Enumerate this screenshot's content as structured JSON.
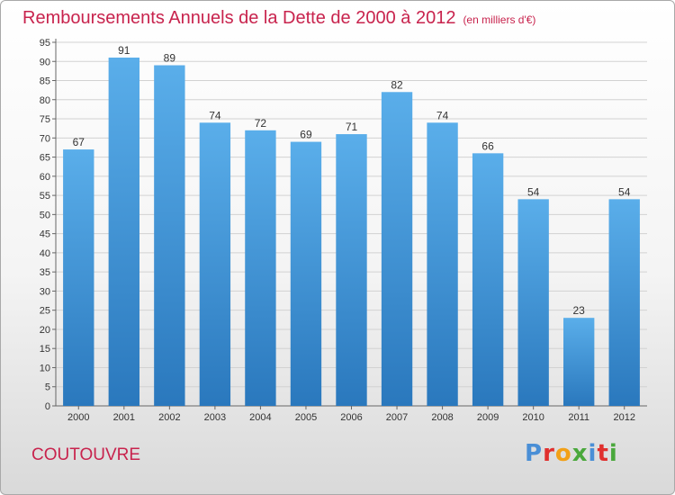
{
  "title": "Remboursements Annuels de la Dette de 2000 à 2012",
  "subtitle": "(en milliers d'€)",
  "commune": "COUTOUVRE",
  "logo_text": "Proxiti",
  "chart_data": {
    "type": "bar",
    "title": "Remboursements Annuels de la Dette de 2000 à 2012",
    "subtitle": "(en milliers d'€)",
    "xlabel": "",
    "ylabel": "",
    "categories": [
      "2000",
      "2001",
      "2002",
      "2003",
      "2004",
      "2005",
      "2006",
      "2007",
      "2008",
      "2009",
      "2010",
      "2011",
      "2012"
    ],
    "values": [
      67,
      91,
      89,
      74,
      72,
      69,
      71,
      82,
      74,
      66,
      54,
      23,
      54
    ],
    "ylim": [
      0,
      95
    ],
    "yticks": [
      0,
      5,
      10,
      15,
      20,
      25,
      30,
      35,
      40,
      45,
      50,
      55,
      60,
      65,
      70,
      75,
      80,
      85,
      90,
      95
    ],
    "grid": true,
    "legend": "none",
    "colors": {
      "bar_top": "#5aaeea",
      "bar_bottom": "#2a78bd",
      "title": "#c8234d",
      "grid": "#d2d2d2"
    }
  }
}
